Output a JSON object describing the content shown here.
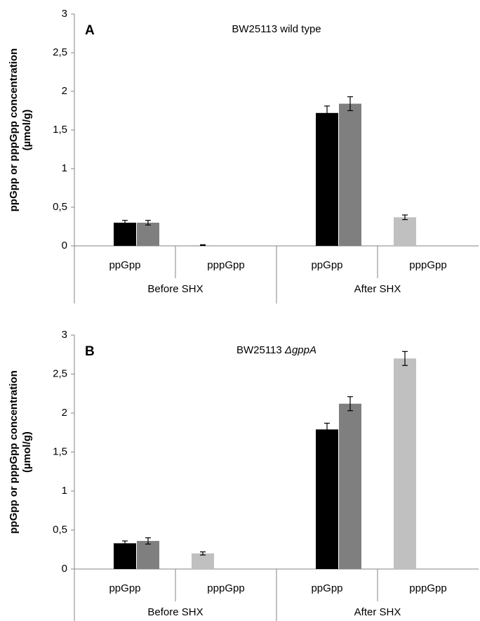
{
  "chart_data": [
    {
      "type": "bar",
      "label": "A",
      "title": [
        "BW25113 wild type"
      ],
      "title_italic": [
        false
      ],
      "ylabel": [
        "ppGpp or pppGpp concentration",
        "(µmol/g)"
      ],
      "categories": [
        "ppGpp",
        "pppGpp",
        "ppGpp",
        "pppGpp"
      ],
      "groups": [
        "Before SHX",
        "After SHX"
      ],
      "series": [
        {
          "color": "#c0c0c0",
          "values": [
            null,
            0.01,
            null,
            0.37
          ],
          "errors": [
            null,
            0.005,
            null,
            0.03
          ]
        },
        {
          "color": "#000000",
          "values": [
            0.3,
            null,
            1.72,
            null
          ],
          "errors": [
            0.03,
            null,
            0.09,
            null
          ]
        },
        {
          "color": "#7f7f7f",
          "values": [
            0.3,
            null,
            1.84,
            null
          ],
          "errors": [
            0.03,
            null,
            0.09,
            null
          ]
        }
      ],
      "ylim": [
        0,
        3
      ],
      "yticks": [
        0,
        {
          "value": 0.5,
          "label": "0,5"
        },
        1,
        {
          "value": 1.5,
          "label": "1,5"
        },
        2,
        {
          "value": 2.5,
          "label": "2,5"
        },
        3
      ]
    },
    {
      "type": "bar",
      "label": "B",
      "title": [
        "BW25113 ",
        "ΔgppA"
      ],
      "title_italic": [
        false,
        true
      ],
      "ylabel": [
        "ppGpp or pppGpp concentration",
        "(µmol/g)"
      ],
      "categories": [
        "ppGpp",
        "pppGpp",
        "ppGpp",
        "pppGpp"
      ],
      "groups": [
        "Before SHX",
        "After SHX"
      ],
      "series": [
        {
          "color": "#c0c0c0",
          "values": [
            null,
            0.2,
            null,
            2.7
          ],
          "errors": [
            null,
            0.02,
            null,
            0.09
          ]
        },
        {
          "color": "#000000",
          "values": [
            0.33,
            null,
            1.79,
            null
          ],
          "errors": [
            0.03,
            null,
            0.08,
            null
          ]
        },
        {
          "color": "#7f7f7f",
          "values": [
            0.36,
            null,
            2.12,
            null
          ],
          "errors": [
            0.04,
            null,
            0.09,
            null
          ]
        }
      ],
      "ylim": [
        0,
        3
      ],
      "yticks": [
        0,
        {
          "value": 0.5,
          "label": "0,5"
        },
        1,
        {
          "value": 1.5,
          "label": "1,5"
        },
        2,
        {
          "value": 2.5,
          "label": "2,5"
        },
        3
      ]
    }
  ]
}
